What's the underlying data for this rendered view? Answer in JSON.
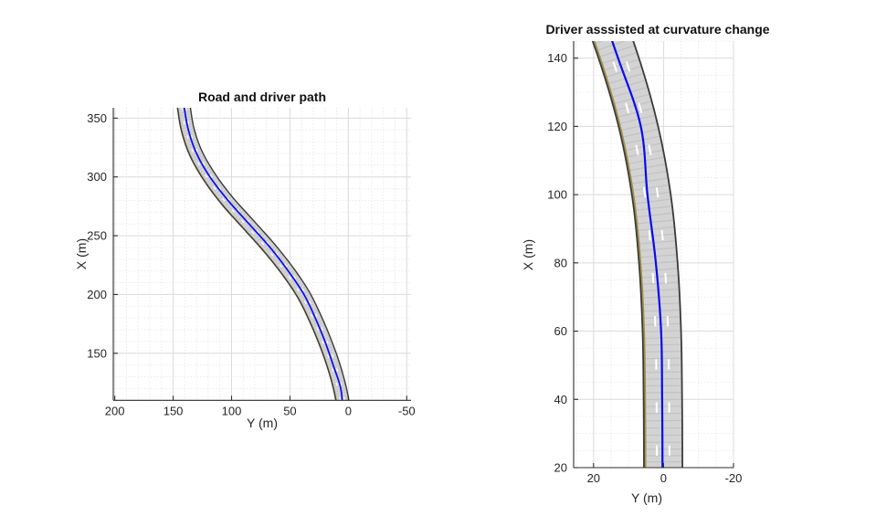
{
  "figure": {
    "background": "#ffffff"
  },
  "colors": {
    "background": "#ffffff",
    "road_fill": "#d3d3d3",
    "road_hatch": "#c2c2c2",
    "road_border": "#3a3a3a",
    "lane_dash_white": "#ffffff",
    "left_edge_yellow": "#a2904a",
    "driver_path_blue": "#0909f2",
    "grid_major": "#dcdcdc",
    "grid_minor": "#e6e6e6",
    "axis": "#2e2e2e",
    "tick_text": "#252525",
    "title_text": "#111111"
  },
  "road_spec": {
    "num_lanes": 3,
    "lane_width_m": 3.6,
    "half_width_m": 5.5,
    "dashed_marking_offsets_m": [
      1.8,
      -1.8
    ],
    "left_edge_marking": "solid-yellow",
    "left_edge_offset_m": 5.05,
    "dash_length_m": 3,
    "dash_gap_m": 9.5
  },
  "chart_data": [
    {
      "type": "line",
      "title": "Road and driver path",
      "xlabel": "Y (m)",
      "ylabel": "X (m)",
      "x_ticks": [
        200,
        150,
        100,
        50,
        0,
        -50
      ],
      "y_ticks": [
        150,
        200,
        250,
        300,
        350
      ],
      "xlim": [
        201.3,
        -53.7
      ],
      "ylim": [
        110,
        358.8
      ],
      "x_axis_reversed": true,
      "grid": "major-solid",
      "minor_grid": "dotted",
      "minor_step_x": 10,
      "minor_step_y": 10,
      "legend": "none",
      "series": [
        {
          "name": "road centerline (3-lane road, gray with white dashed lane markings, yellow left edge)",
          "points_XY_m": [
            [
              8,
              0.05
            ],
            [
              20,
              0.1
            ],
            [
              40,
              0.2
            ],
            [
              60,
              0.5
            ],
            [
              80,
              1.5
            ],
            [
              100,
              3.5
            ],
            [
              120,
              7.2
            ],
            [
              140,
              12.8
            ],
            [
              160,
              20
            ],
            [
              180,
              28.5
            ],
            [
              200,
              38.5
            ],
            [
              220,
              52
            ],
            [
              240,
              68
            ],
            [
              260,
              86
            ],
            [
              280,
              104
            ],
            [
              300,
              119
            ],
            [
              320,
              130.5
            ],
            [
              340,
              137.5
            ],
            [
              360,
              141
            ],
            [
              370,
              142.6
            ]
          ]
        },
        {
          "name": "driver path",
          "color": "#0909f2",
          "points_XY_m": [
            [
              8,
              0.3
            ],
            [
              20,
              0.3
            ],
            [
              40,
              0.4
            ],
            [
              60,
              0.7
            ],
            [
              80,
              2.2
            ],
            [
              100,
              4.6
            ],
            [
              120,
              6.5
            ],
            [
              140,
              13
            ],
            [
              160,
              20
            ],
            [
              180,
              28.3
            ],
            [
              200,
              38
            ],
            [
              220,
              51.5
            ],
            [
              240,
              67
            ],
            [
              260,
              85
            ],
            [
              280,
              103
            ],
            [
              300,
              118.5
            ],
            [
              320,
              130
            ],
            [
              340,
              137
            ],
            [
              360,
              140.7
            ],
            [
              370,
              142.3
            ]
          ]
        }
      ]
    },
    {
      "type": "line",
      "title": "Driver asssisted at curvature change",
      "xlabel": "Y (m)",
      "ylabel": "X (m)",
      "x_ticks": [
        20,
        0,
        -20
      ],
      "y_ticks": [
        20,
        40,
        60,
        80,
        100,
        120,
        140
      ],
      "xlim": [
        25.7,
        -20
      ],
      "ylim": [
        20,
        145
      ],
      "x_axis_reversed": true,
      "grid": "major-solid",
      "minor_grid": "dotted",
      "minor_step_x": 5,
      "minor_step_y": 5,
      "legend": "none",
      "series": [
        {
          "name": "road centerline (3-lane road, gray with white dashed lane markings, yellow left edge)",
          "points_XY_m": [
            [
              8,
              0.05
            ],
            [
              20,
              0.1
            ],
            [
              40,
              0.2
            ],
            [
              60,
              0.5
            ],
            [
              80,
              1.5
            ],
            [
              100,
              3.5
            ],
            [
              120,
              7.2
            ],
            [
              140,
              12.8
            ],
            [
              160,
              20
            ],
            [
              180,
              28.5
            ],
            [
              200,
              38.5
            ],
            [
              220,
              52
            ],
            [
              240,
              68
            ],
            [
              260,
              86
            ],
            [
              280,
              104
            ],
            [
              300,
              119
            ],
            [
              320,
              130.5
            ],
            [
              340,
              137.5
            ],
            [
              360,
              141
            ],
            [
              370,
              142.6
            ]
          ]
        },
        {
          "name": "driver path",
          "color": "#0909f2",
          "points_XY_m": [
            [
              8,
              0.3
            ],
            [
              20,
              0.3
            ],
            [
              40,
              0.4
            ],
            [
              60,
              0.7
            ],
            [
              80,
              2.2
            ],
            [
              100,
              4.6
            ],
            [
              120,
              6.5
            ],
            [
              140,
              13
            ],
            [
              160,
              20
            ],
            [
              180,
              28.3
            ],
            [
              200,
              38
            ],
            [
              220,
              51.5
            ],
            [
              240,
              67
            ],
            [
              260,
              85
            ],
            [
              280,
              103
            ],
            [
              300,
              118.5
            ],
            [
              320,
              130
            ],
            [
              340,
              137
            ],
            [
              360,
              140.7
            ],
            [
              370,
              142.3
            ]
          ]
        }
      ]
    }
  ]
}
